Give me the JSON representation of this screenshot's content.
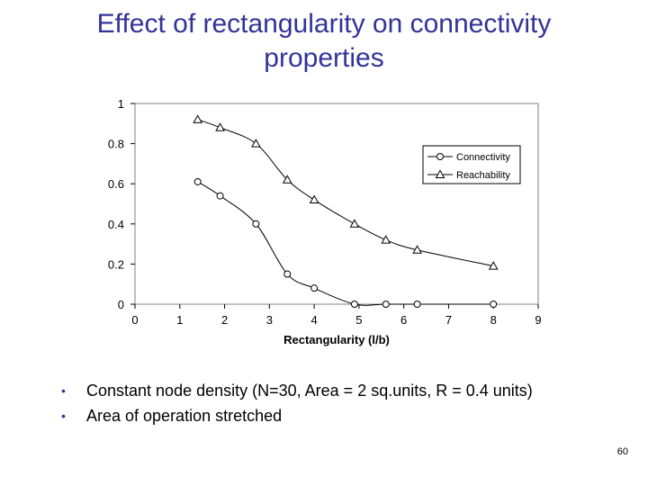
{
  "slide": {
    "title": "Effect of rectangularity on connectivity properties",
    "bullets": [
      "Constant node density (N=30, Area = 2 sq.units, R = 0.4 units)",
      "Area of operation stretched"
    ],
    "page_number": "60"
  },
  "chart_data": {
    "type": "line",
    "title": "",
    "xlabel": "Rectangularity (l/b)",
    "ylabel": "",
    "xlim": [
      0,
      9
    ],
    "ylim": [
      0,
      1
    ],
    "x_ticks": [
      "0",
      "1",
      "2",
      "3",
      "4",
      "5",
      "6",
      "7",
      "8",
      "9"
    ],
    "y_ticks": [
      "0",
      "0.2",
      "0.4",
      "0.6",
      "0.8",
      "1"
    ],
    "grid": false,
    "legend_position": "upper-right",
    "series": [
      {
        "name": "Connectivity",
        "marker": "circle",
        "x": [
          1.4,
          1.9,
          2.7,
          3.4,
          4.0,
          4.9,
          5.6,
          6.3,
          8.0
        ],
        "y": [
          0.61,
          0.54,
          0.4,
          0.15,
          0.08,
          0.0,
          0.0,
          0.0,
          0.0
        ]
      },
      {
        "name": "Reachability",
        "marker": "triangle",
        "x": [
          1.4,
          1.9,
          2.7,
          3.4,
          4.0,
          4.9,
          5.6,
          6.3,
          8.0
        ],
        "y": [
          0.92,
          0.88,
          0.8,
          0.62,
          0.52,
          0.4,
          0.32,
          0.27,
          0.19
        ]
      }
    ]
  },
  "colors": {
    "title": "#333399",
    "bullet": "#333399",
    "plot_background": "#ffffff",
    "series_line": "#000000"
  }
}
